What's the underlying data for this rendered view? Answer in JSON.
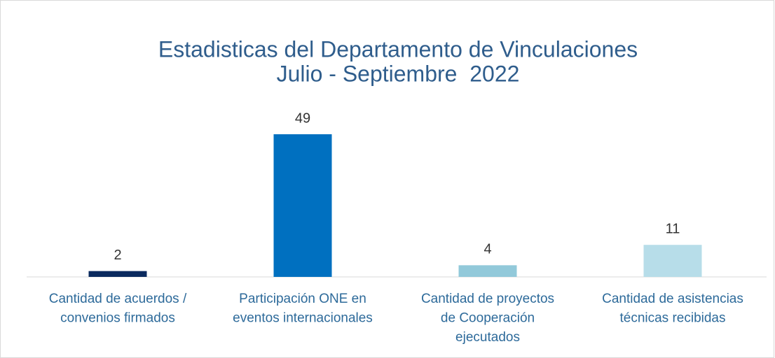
{
  "chart_data": {
    "type": "bar",
    "title": [
      "Estadisticas del Departamento de Vinculaciones",
      "Julio - Septiembre  2022"
    ],
    "categories": [
      [
        "Cantidad de acuerdos /",
        "convenios firmados"
      ],
      [
        "Participación ONE en",
        "eventos internacionales"
      ],
      [
        "Cantidad de proyectos",
        "de Cooperación",
        "ejecutados"
      ],
      [
        "Cantidad de asistencias",
        "técnicas recibidas"
      ]
    ],
    "values": [
      2,
      49,
      4,
      11
    ],
    "colors": [
      "#0a2a5e",
      "#0070c0",
      "#92c9da",
      "#b7dde9"
    ]
  }
}
